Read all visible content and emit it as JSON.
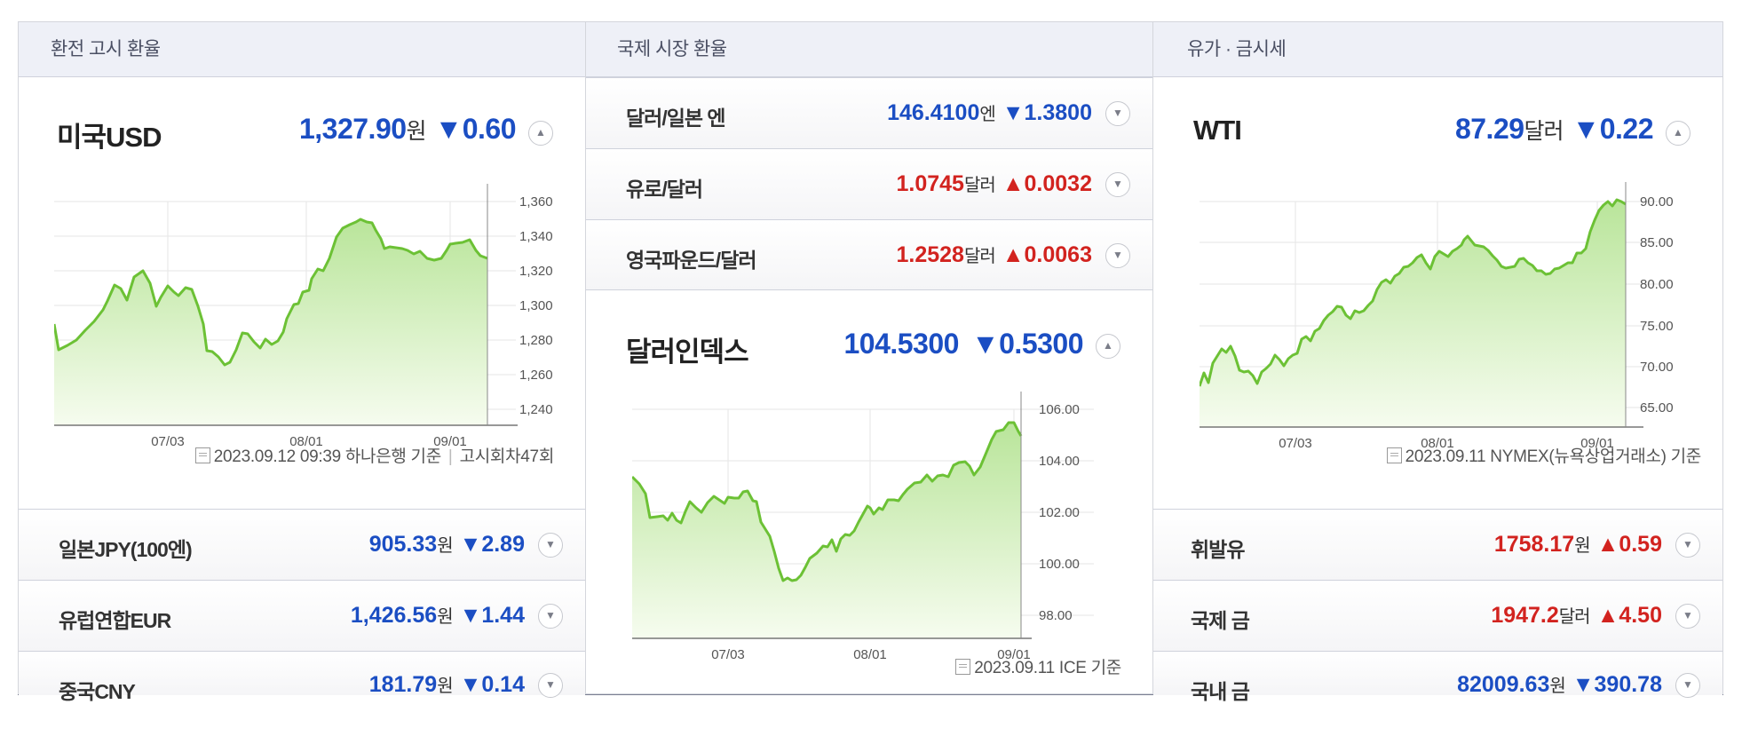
{
  "panels": {
    "exchange": {
      "header": "환전 고시 환율",
      "main": {
        "name": "미국USD",
        "price": "1,327.90",
        "unit": "원",
        "change": "▼0.60",
        "direction": "down"
      },
      "chart": {
        "y_ticks": [
          "1,360",
          "1,340",
          "1,320",
          "1,300",
          "1,280",
          "1,260",
          "1,240"
        ],
        "x_ticks": [
          "07/03",
          "08/01",
          "09/01"
        ]
      },
      "source": {
        "datetime": "2023.09.12 09:39 하나은행 기준",
        "round": "고시회차47회"
      },
      "rows": [
        {
          "name": "일본JPY(100엔)",
          "price": "905.33",
          "unit": "원",
          "change": "▼2.89",
          "direction": "down"
        },
        {
          "name": "유럽연합EUR",
          "price": "1,426.56",
          "unit": "원",
          "change": "▼1.44",
          "direction": "down"
        },
        {
          "name": "중국CNY",
          "price": "181.79",
          "unit": "원",
          "change": "▼0.14",
          "direction": "down"
        }
      ]
    },
    "international": {
      "header": "국제 시장 환율",
      "rows": [
        {
          "name": "달러/일본 엔",
          "price": "146.4100",
          "unit": "엔",
          "change": "▼1.3800",
          "direction": "down"
        },
        {
          "name": "유로/달러",
          "price": "1.0745",
          "unit": "달러",
          "change": "▲0.0032",
          "direction": "up"
        },
        {
          "name": "영국파운드/달러",
          "price": "1.2528",
          "unit": "달러",
          "change": "▲0.0063",
          "direction": "up"
        }
      ],
      "main": {
        "name": "달러인덱스",
        "price": "104.5300",
        "unit": "",
        "change": "▼0.5300",
        "direction": "down"
      },
      "chart": {
        "y_ticks": [
          "106.00",
          "104.00",
          "102.00",
          "100.00",
          "98.00"
        ],
        "x_ticks": [
          "07/03",
          "08/01",
          "09/01"
        ]
      },
      "source": {
        "datetime": "2023.09.11 ICE 기준"
      }
    },
    "commodities": {
      "header": "유가 · 금시세",
      "main": {
        "name": "WTI",
        "price": "87.29",
        "unit": "달러",
        "change": "▼0.22",
        "direction": "down"
      },
      "chart": {
        "y_ticks": [
          "90.00",
          "85.00",
          "80.00",
          "75.00",
          "70.00",
          "65.00"
        ],
        "x_ticks": [
          "07/03",
          "08/01",
          "09/01"
        ]
      },
      "source": {
        "datetime": "2023.09.11 NYMEX(뉴욕상업거래소) 기준"
      },
      "rows": [
        {
          "name": "휘발유",
          "price": "1758.17",
          "unit": "원",
          "change": "▲0.59",
          "direction": "up"
        },
        {
          "name": "국제 금",
          "price": "1947.2",
          "unit": "달러",
          "change": "▲4.50",
          "direction": "up"
        },
        {
          "name": "국내 금",
          "price": "82009.63",
          "unit": "원",
          "change": "▼390.78",
          "direction": "down"
        }
      ]
    }
  },
  "icons": {
    "toggle_open": "chevron-up-icon",
    "toggle_closed": "chevron-down-icon",
    "source": "document-icon"
  },
  "colors": {
    "down": "#1b4ec3",
    "up": "#d2231f",
    "line": "#6cc135",
    "fill_top": "#b9e59a"
  }
}
